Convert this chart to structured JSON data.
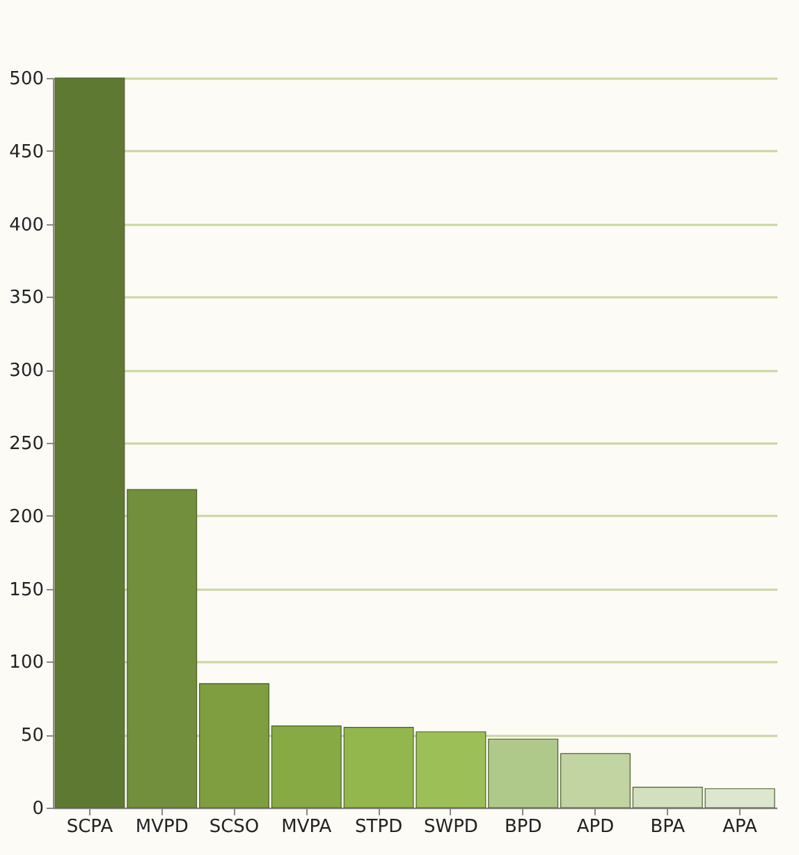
{
  "chart_data": {
    "type": "bar",
    "categories": [
      "SCPA",
      "MVPD",
      "SCSO",
      "MVPA",
      "STPD",
      "SWPD",
      "BPD",
      "APD",
      "BPA",
      "APA"
    ],
    "values": [
      500,
      218,
      85,
      56,
      55,
      52,
      47,
      37,
      14,
      13
    ],
    "colors": [
      "#5e7a32",
      "#718f3c",
      "#7e9e40",
      "#88aa45",
      "#93b74c",
      "#9dbf58",
      "#afc98a",
      "#c1d4a2",
      "#d3e0bf",
      "#dde6cf"
    ],
    "ylim": [
      0,
      500
    ],
    "yticks": [
      0,
      50,
      100,
      150,
      200,
      250,
      300,
      350,
      400,
      450,
      500
    ],
    "grid": "y"
  }
}
